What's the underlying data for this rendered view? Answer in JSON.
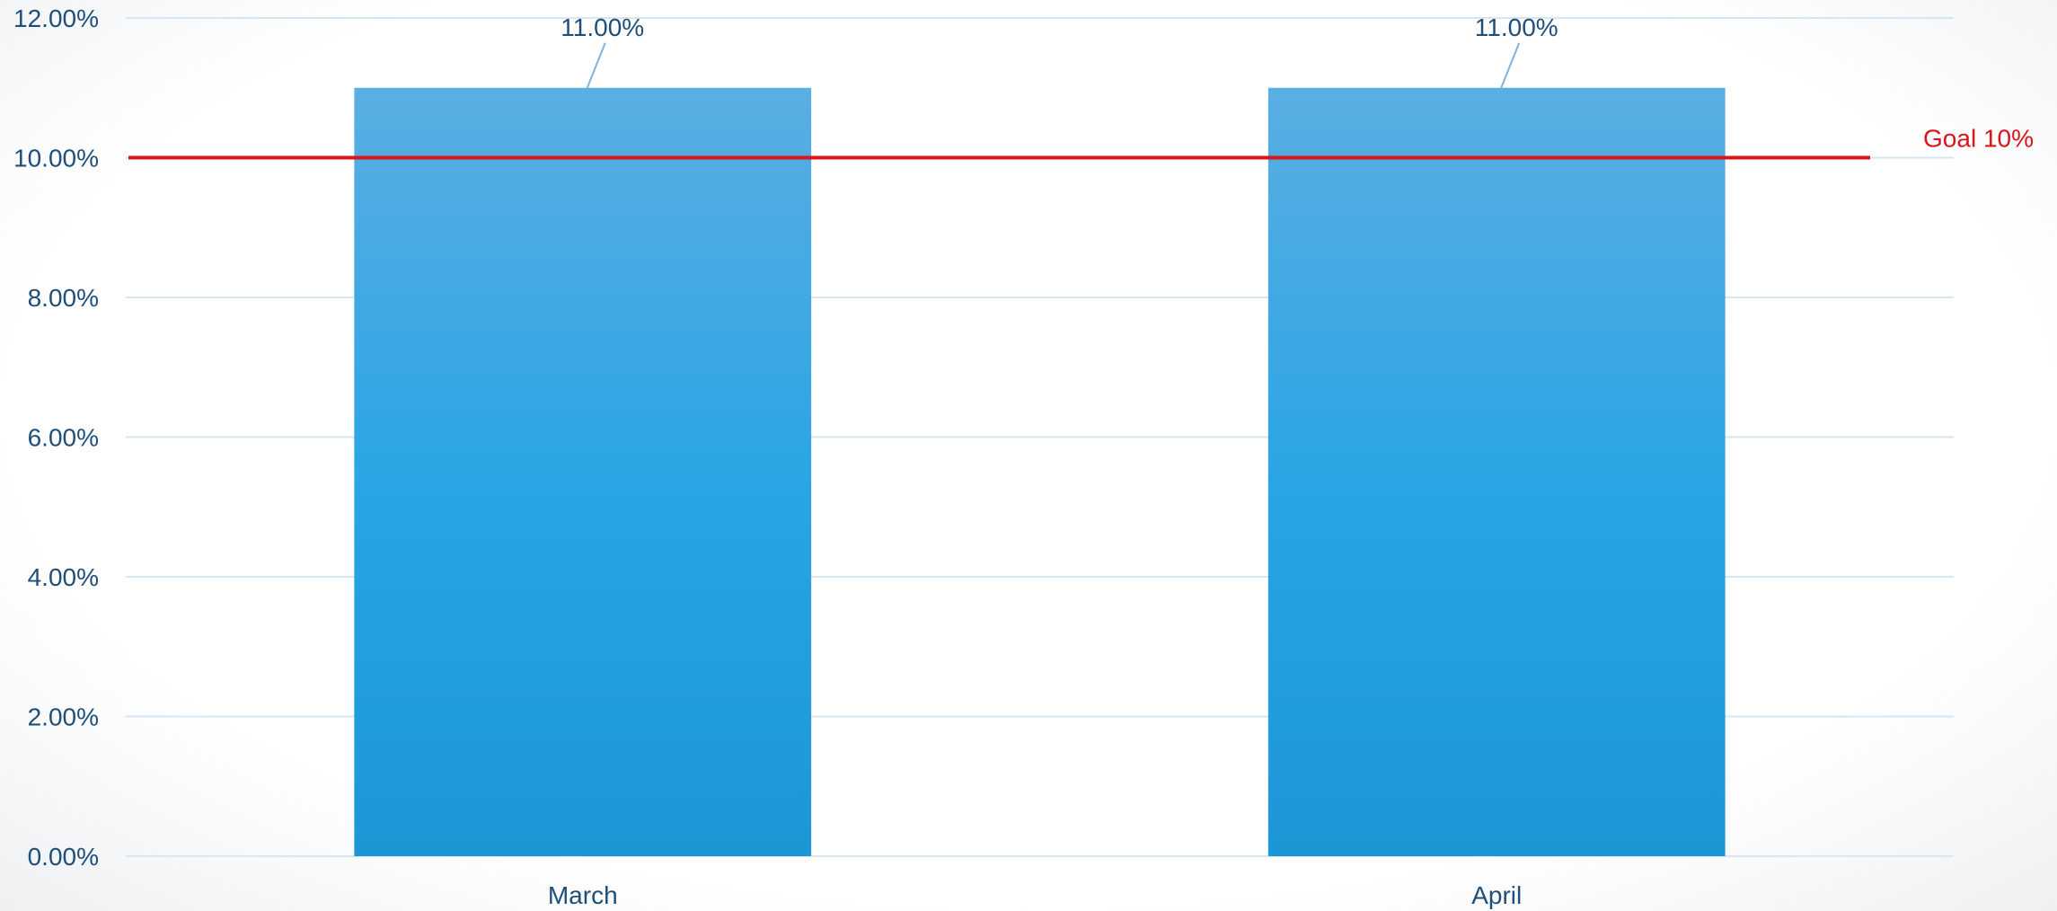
{
  "chart_data": {
    "type": "bar",
    "categories": [
      "March",
      "April"
    ],
    "values": [
      11.0,
      11.0
    ],
    "data_labels": [
      "11.00%",
      "11.00%"
    ],
    "ylim": [
      0,
      12
    ],
    "yticks": [
      0,
      2,
      4,
      6,
      8,
      10,
      12
    ],
    "ytick_labels": [
      "0.00%",
      "2.00%",
      "4.00%",
      "6.00%",
      "8.00%",
      "10.00%",
      "12.00%"
    ],
    "title": "",
    "xlabel": "",
    "ylabel": "",
    "grid": true,
    "legend": "none",
    "bar_color_top": "#5aaee2",
    "bar_color_mid": "#27a4e4",
    "bar_color_bottom": "#1d96d6",
    "gridline_color": "#d6e6f2",
    "tick_color": "#1f4e79",
    "goal_line": {
      "value": 10,
      "label": "Goal 10%",
      "color": "#d9141b"
    }
  }
}
